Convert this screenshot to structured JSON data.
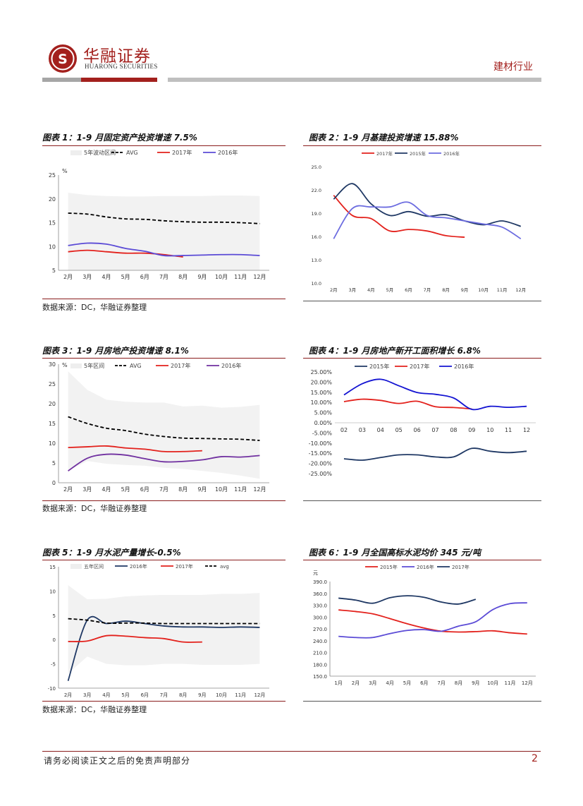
{
  "header": {
    "brand_cn": "华融证券",
    "brand_en": "HUARONG SECURITIES",
    "industry": "建材行业",
    "logo_glyph": "S",
    "accent": "#a3201d"
  },
  "footer": {
    "disclaimer": "请务必阅读正文之后的免责声明部分",
    "page": "2"
  },
  "charts": {
    "c1": {
      "title": "图表 1：1-9 月固定资产投资增速 7.5%",
      "source": "数据来源：DC，华融证券整理"
    },
    "c2": {
      "title": "图表 2：1-9 月基建投资增速 15.88%"
    },
    "c3": {
      "title": "图表 3：1-9 月房地产投资增速 8.1%",
      "source": "数据来源：DC，华融证券整理"
    },
    "c4": {
      "title": "图表 4：1-9 月房地产新开工面积增长 6.8%"
    },
    "c5": {
      "title": "图表 5：1-9 月水泥产量增长-0.5%",
      "source": "数据来源：DC，华融证券整理"
    },
    "c6": {
      "title": "图表 6：1-9 月全国高标水泥均价 345 元/吨"
    }
  },
  "chart_data": [
    {
      "id": "c1",
      "type": "line",
      "title": "图表 1：1-9 月固定资产投资增速 7.5%",
      "unit_label": "%",
      "categories": [
        "2月",
        "3月",
        "4月",
        "5月",
        "6月",
        "7月",
        "8月",
        "9月",
        "10月",
        "11月",
        "12月"
      ],
      "ylim": [
        5,
        25
      ],
      "yticks": [
        5,
        10,
        15,
        20,
        25
      ],
      "band": {
        "name": "5年波动区间",
        "low": [
          5,
          5,
          5,
          5,
          5,
          5,
          5,
          5,
          5,
          5,
          5
        ],
        "high": [
          21.3,
          20.8,
          20.6,
          20.5,
          20.5,
          20.6,
          20.6,
          20.6,
          20.7,
          20.7,
          20.6
        ],
        "color": "#f2f2f2"
      },
      "series": [
        {
          "name": "AVG",
          "color": "#000000",
          "dash": true,
          "values": [
            17.0,
            16.8,
            16.2,
            15.8,
            15.7,
            15.4,
            15.2,
            15.1,
            15.1,
            15.0,
            14.8
          ]
        },
        {
          "name": "2017年",
          "color": "#e3211c",
          "values": [
            8.9,
            9.2,
            8.9,
            8.6,
            8.6,
            8.3,
            7.8,
            null,
            null,
            null,
            null
          ]
        },
        {
          "name": "2016年",
          "color": "#5b4bd6",
          "values": [
            10.2,
            10.7,
            10.5,
            9.6,
            9.0,
            8.1,
            8.1,
            8.2,
            8.3,
            8.3,
            8.1
          ]
        }
      ]
    },
    {
      "id": "c2",
      "type": "line",
      "title": "图表 2：1-9 月基建投资增速 15.88%",
      "categories": [
        "2月",
        "3月",
        "4月",
        "5月",
        "6月",
        "7月",
        "8月",
        "9月",
        "10月",
        "11月",
        "12月"
      ],
      "ylim": [
        10,
        25
      ],
      "yticks": [
        "10.0",
        "13.0",
        "16.0",
        "19.0",
        "22.0",
        "25.0"
      ],
      "series": [
        {
          "name": "2017年",
          "color": "#e3211c",
          "values": [
            21.3,
            18.7,
            18.3,
            16.7,
            16.9,
            16.7,
            16.1,
            15.9,
            null,
            null,
            null
          ]
        },
        {
          "name": "2015年",
          "color": "#1f3864",
          "values": [
            20.8,
            22.8,
            20.2,
            18.7,
            19.2,
            18.6,
            18.8,
            18.0,
            17.5,
            18.0,
            17.3
          ]
        },
        {
          "name": "2016年",
          "color": "#6c6ce0",
          "values": [
            15.7,
            19.6,
            19.8,
            19.8,
            20.4,
            18.7,
            18.4,
            18.0,
            17.6,
            17.2,
            15.7
          ]
        }
      ]
    },
    {
      "id": "c3",
      "type": "line",
      "title": "图表 3：1-9 月房地产投资增速 8.1%",
      "unit_label": "%",
      "categories": [
        "2月",
        "3月",
        "4月",
        "5月",
        "6月",
        "7月",
        "8月",
        "9月",
        "10月",
        "11月",
        "12月"
      ],
      "ylim": [
        0,
        30
      ],
      "yticks": [
        0,
        5,
        10,
        15,
        20,
        25,
        30
      ],
      "band": {
        "name": "5年区间",
        "low": [
          3.0,
          5.5,
          4.8,
          4.5,
          4.3,
          3.8,
          3.5,
          3.0,
          2.5,
          1.8,
          1.0
        ],
        "high": [
          28.2,
          23.5,
          21.0,
          20.5,
          20.3,
          20.3,
          19.3,
          19.5,
          19.0,
          19.2,
          19.7
        ],
        "color": "#f2f2f2"
      },
      "series": [
        {
          "name": "AVG",
          "color": "#000000",
          "dash": true,
          "values": [
            16.7,
            15.0,
            13.8,
            13.2,
            12.3,
            11.7,
            11.3,
            11.2,
            11.1,
            11.0,
            10.7
          ]
        },
        {
          "name": "2017年",
          "color": "#e3211c",
          "values": [
            8.9,
            9.1,
            9.3,
            8.8,
            8.5,
            7.9,
            7.9,
            8.1,
            null,
            null,
            null
          ]
        },
        {
          "name": "2016年",
          "color": "#7030a0",
          "values": [
            3.0,
            6.2,
            7.2,
            7.0,
            6.1,
            5.3,
            5.4,
            5.8,
            6.6,
            6.5,
            6.9
          ]
        }
      ]
    },
    {
      "id": "c4",
      "type": "line",
      "title": "图表 4：1-9 月房地产新开工面积增长 6.8%",
      "categories": [
        "02",
        "03",
        "04",
        "05",
        "06",
        "07",
        "08",
        "09",
        "10",
        "11",
        "12"
      ],
      "ylim": [
        -25,
        25
      ],
      "yticks": [
        "-25.00%",
        "-20.00%",
        "-15.00%",
        "-10.00%",
        "-5.00%",
        "0.00%",
        "5.00%",
        "10.00%",
        "15.00%",
        "20.00%",
        "25.00%"
      ],
      "series": [
        {
          "name": "2015年",
          "color": "#1f3864",
          "values": [
            -17.7,
            -18.4,
            -17.1,
            -15.8,
            -15.8,
            -16.8,
            -16.8,
            -12.6,
            -14.0,
            -14.7,
            -14.0
          ]
        },
        {
          "name": "2017年",
          "color": "#e3211c",
          "values": [
            10.4,
            11.6,
            11.0,
            9.5,
            10.6,
            7.9,
            7.5,
            6.8,
            null,
            null,
            null
          ]
        },
        {
          "name": "2016年",
          "color": "#1414d2",
          "values": [
            13.7,
            19.2,
            21.4,
            18.2,
            14.9,
            14.0,
            12.2,
            6.6,
            8.1,
            7.6,
            8.1
          ]
        }
      ]
    },
    {
      "id": "c5",
      "type": "line",
      "title": "图表 5：1-9 月水泥产量增长-0.5%",
      "categories": [
        "2月",
        "3月",
        "4月",
        "5月",
        "6月",
        "7月",
        "8月",
        "9月",
        "10月",
        "11月",
        "12月"
      ],
      "ylim": [
        -10,
        15
      ],
      "yticks": [
        -10,
        -5,
        0,
        5,
        10,
        15
      ],
      "band": {
        "name": "五年区间",
        "low": [
          -7.0,
          -3.5,
          -5.0,
          -5.3,
          -5.3,
          -5.0,
          -5.0,
          -5.2,
          -5.2,
          -5.2,
          -5.0
        ],
        "high": [
          11.2,
          8.3,
          8.4,
          8.9,
          9.1,
          9.2,
          9.2,
          9.2,
          9.4,
          9.4,
          9.6
        ],
        "color": "#f2f2f2"
      },
      "series": [
        {
          "name": "2016年",
          "color": "#1f3864",
          "values": [
            -8.5,
            4.0,
            3.3,
            3.8,
            3.3,
            2.8,
            2.6,
            2.6,
            2.5,
            2.6,
            2.5
          ]
        },
        {
          "name": "2017年",
          "color": "#e3211c",
          "values": [
            -0.4,
            -0.3,
            0.8,
            0.7,
            0.4,
            0.2,
            -0.5,
            -0.5,
            null,
            null,
            null
          ]
        },
        {
          "name": "avg",
          "color": "#000000",
          "dash": true,
          "values": [
            4.3,
            4.0,
            3.4,
            3.4,
            3.4,
            3.3,
            3.3,
            3.3,
            3.3,
            3.3,
            3.3
          ]
        }
      ]
    },
    {
      "id": "c6",
      "type": "line",
      "title": "图表 6：1-9 月全国高标水泥均价 345 元/吨",
      "unit_label": "元",
      "categories": [
        "1月",
        "2月",
        "3月",
        "4月",
        "5月",
        "6月",
        "7月",
        "8月",
        "9月",
        "10月",
        "11月",
        "12月"
      ],
      "ylim": [
        150,
        390
      ],
      "yticks": [
        "150.0",
        "180.0",
        "210.0",
        "240.0",
        "270.0",
        "300.0",
        "330.0",
        "360.0",
        "390.0"
      ],
      "series": [
        {
          "name": "2015年",
          "color": "#e3211c",
          "values": [
            318,
            314,
            308,
            296,
            283,
            272,
            264,
            262,
            263,
            265,
            260,
            257
          ]
        },
        {
          "name": "2016年",
          "color": "#5b4bd6",
          "values": [
            251,
            248,
            248,
            258,
            266,
            268,
            264,
            277,
            288,
            319,
            334,
            336
          ]
        },
        {
          "name": "2017年",
          "color": "#1f3864",
          "values": [
            348,
            343,
            335,
            349,
            354,
            350,
            338,
            333,
            345,
            null,
            null,
            null
          ]
        }
      ]
    }
  ]
}
